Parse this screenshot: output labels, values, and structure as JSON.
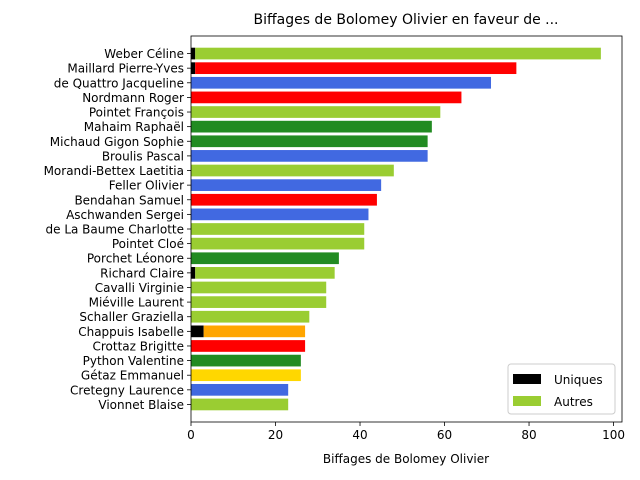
{
  "chart_data": {
    "type": "bar",
    "orientation": "horizontal",
    "stacked": true,
    "title": "Biffages de Bolomey Olivier en faveur de ...",
    "xlabel": "Biffages de Bolomey Olivier",
    "ylabel": "",
    "xlim": [
      0,
      102
    ],
    "xticks": [
      0,
      20,
      40,
      60,
      80,
      100
    ],
    "grid": false,
    "legend": {
      "position": "lower-right",
      "entries": [
        {
          "label": "Uniques",
          "color": "#000000"
        },
        {
          "label": "Autres",
          "color": "#9acd32"
        }
      ]
    },
    "categories": [
      "Weber Céline",
      "Maillard Pierre-Yves",
      "de Quattro Jacqueline",
      "Nordmann Roger",
      "Pointet François",
      "Mahaim Raphaël",
      "Michaud Gigon Sophie",
      "Broulis Pascal",
      "Morandi-Bettex Laetitia",
      "Feller Olivier",
      "Bendahan Samuel",
      "Aschwanden Sergei",
      "de La Baume Charlotte",
      "Pointet Cloé",
      "Porchet Léonore",
      "Richard Claire",
      "Cavalli Virginie",
      "Miéville Laurent",
      "Schaller Graziella",
      "Chappuis Isabelle",
      "Crottaz Brigitte",
      "Python Valentine",
      "Gétaz Emmanuel",
      "Cretegny Laurence",
      "Vionnet Blaise"
    ],
    "series": [
      {
        "name": "Uniques",
        "values": [
          1,
          1,
          0,
          0,
          0,
          0,
          0,
          0,
          0,
          0,
          0,
          0,
          0,
          0,
          0,
          1,
          0,
          0,
          0,
          3,
          0,
          0,
          0,
          0,
          0
        ],
        "color": "#000000"
      },
      {
        "name": "Autres",
        "values": [
          96,
          76,
          71,
          64,
          59,
          57,
          56,
          56,
          48,
          45,
          44,
          42,
          41,
          41,
          35,
          33,
          32,
          32,
          28,
          24,
          27,
          26,
          26,
          23,
          23
        ],
        "colors": [
          "#9acd32",
          "#ff0000",
          "#4169e1",
          "#ff0000",
          "#9acd32",
          "#228b22",
          "#228b22",
          "#4169e1",
          "#9acd32",
          "#4169e1",
          "#ff0000",
          "#4169e1",
          "#9acd32",
          "#9acd32",
          "#228b22",
          "#9acd32",
          "#9acd32",
          "#9acd32",
          "#9acd32",
          "#ffa500",
          "#ff0000",
          "#228b22",
          "#ffd700",
          "#4169e1",
          "#9acd32"
        ]
      }
    ]
  }
}
